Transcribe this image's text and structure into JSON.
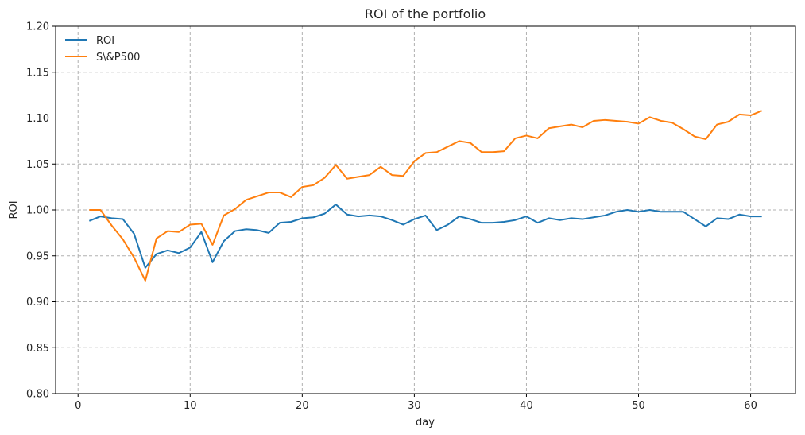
{
  "chart_data": {
    "type": "line",
    "title": "ROI of the portfolio",
    "xlabel": "day",
    "ylabel": "ROI",
    "xlim": [
      -2,
      64
    ],
    "ylim": [
      0.8,
      1.2
    ],
    "xticks": [
      0,
      10,
      20,
      30,
      40,
      50,
      60
    ],
    "yticks": [
      "0.80",
      "0.85",
      "0.90",
      "0.95",
      "1.00",
      "1.05",
      "1.10",
      "1.15",
      "1.20"
    ],
    "grid": true,
    "legend_position": "top-left",
    "x": [
      1,
      2,
      3,
      4,
      5,
      6,
      7,
      8,
      9,
      10,
      11,
      12,
      13,
      14,
      15,
      16,
      17,
      18,
      19,
      20,
      21,
      22,
      23,
      24,
      25,
      26,
      27,
      28,
      29,
      30,
      31,
      32,
      33,
      34,
      35,
      36,
      37,
      38,
      39,
      40,
      41,
      42,
      43,
      44,
      45,
      46,
      47,
      48,
      49,
      50,
      51,
      52,
      53,
      54,
      55,
      56,
      57,
      58,
      59,
      60,
      61
    ],
    "series": [
      {
        "name": "ROI",
        "color": "#1f77b4",
        "values": [
          0.988,
          0.993,
          0.991,
          0.99,
          0.974,
          0.937,
          0.952,
          0.956,
          0.953,
          0.959,
          0.976,
          0.943,
          0.966,
          0.977,
          0.979,
          0.978,
          0.975,
          0.986,
          0.987,
          0.991,
          0.992,
          0.996,
          1.006,
          0.995,
          0.993,
          0.994,
          0.993,
          0.989,
          0.984,
          0.99,
          0.994,
          0.978,
          0.984,
          0.993,
          0.99,
          0.986,
          0.986,
          0.987,
          0.989,
          0.993,
          0.986,
          0.991,
          0.989,
          0.991,
          0.99,
          0.992,
          0.994,
          0.998,
          1.0,
          0.998,
          1.0,
          0.998,
          0.998,
          0.998,
          0.99,
          0.982,
          0.991,
          0.99,
          0.995,
          0.993,
          0.993
        ]
      },
      {
        "name": "S\\&P500",
        "color": "#ff7f0e",
        "values": [
          1.0,
          1.0,
          0.983,
          0.968,
          0.948,
          0.923,
          0.969,
          0.977,
          0.976,
          0.984,
          0.985,
          0.962,
          0.994,
          1.001,
          1.011,
          1.015,
          1.019,
          1.019,
          1.014,
          1.025,
          1.027,
          1.035,
          1.049,
          1.034,
          1.036,
          1.038,
          1.047,
          1.038,
          1.037,
          1.053,
          1.062,
          1.063,
          1.069,
          1.075,
          1.073,
          1.063,
          1.063,
          1.064,
          1.078,
          1.081,
          1.078,
          1.089,
          1.091,
          1.093,
          1.09,
          1.097,
          1.098,
          1.097,
          1.096,
          1.094,
          1.101,
          1.097,
          1.095,
          1.088,
          1.08,
          1.077,
          1.093,
          1.096,
          1.104,
          1.103,
          1.108
        ]
      }
    ]
  }
}
